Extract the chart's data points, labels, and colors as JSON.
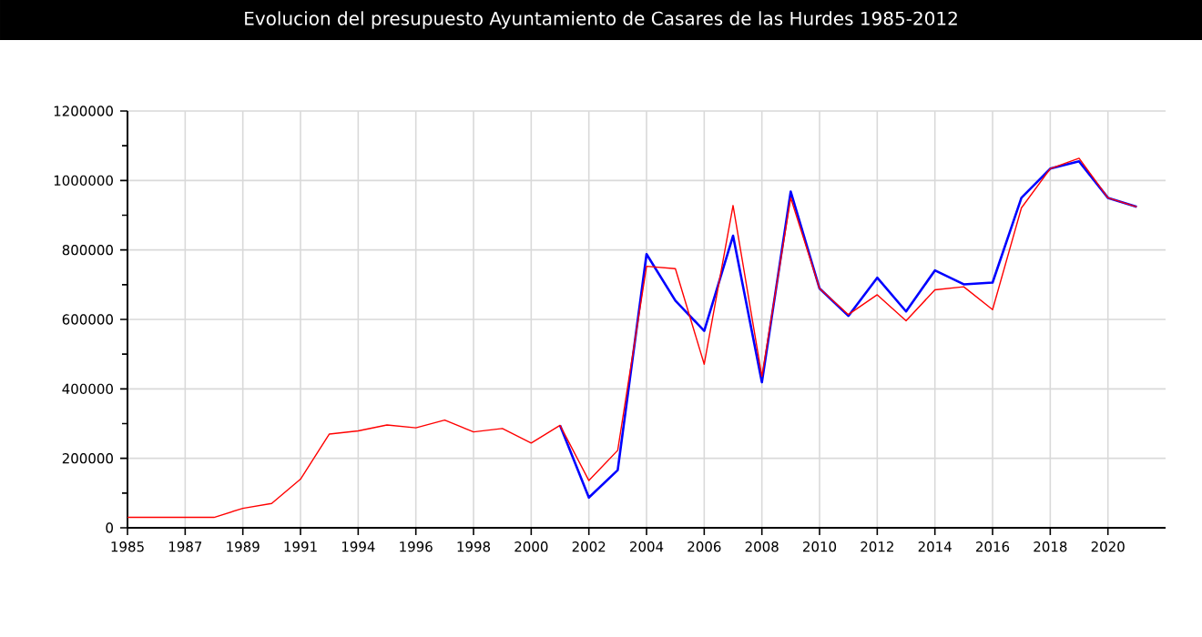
{
  "chart_data": {
    "type": "line",
    "title": "Evolucion del presupuesto Ayuntamiento de Casares de las Hurdes 1985-2012",
    "categories": [
      "1985",
      null,
      "1987",
      null,
      "1989",
      null,
      "1991",
      null,
      "1994",
      null,
      "1996",
      null,
      "1998",
      null,
      "2000",
      null,
      "2002",
      null,
      "2004",
      null,
      "2006",
      null,
      "2008",
      null,
      "2010",
      null,
      "2012",
      null,
      "2014",
      null,
      "2016",
      null,
      "2018",
      null,
      "2020",
      null
    ],
    "series": [
      {
        "color": "#0000ff",
        "values": [
          null,
          null,
          null,
          null,
          null,
          null,
          null,
          null,
          null,
          null,
          null,
          null,
          null,
          null,
          null,
          295000,
          87000,
          166000,
          788000,
          654000,
          567000,
          841000,
          419000,
          968000,
          689000,
          610000,
          720000,
          623000,
          741000,
          701000,
          706000,
          950000,
          1034000,
          1055000,
          950000,
          924000
        ]
      },
      {
        "color": "#ff0000",
        "values": [
          30000,
          30000,
          30000,
          30000,
          56000,
          70000,
          140000,
          270000,
          279000,
          296000,
          288000,
          310000,
          276000,
          286000,
          244000,
          295000,
          136000,
          223000,
          753000,
          746000,
          471000,
          928000,
          436000,
          950000,
          689000,
          614000,
          671000,
          596000,
          685000,
          694000,
          628000,
          921000,
          1034000,
          1064000,
          950000,
          924000
        ]
      }
    ],
    "ylim": [
      0,
      1200000
    ],
    "yticks": [
      0,
      200000,
      400000,
      600000,
      800000,
      1000000,
      1200000
    ],
    "grid": true,
    "line_style": "solid",
    "marker": "none"
  }
}
